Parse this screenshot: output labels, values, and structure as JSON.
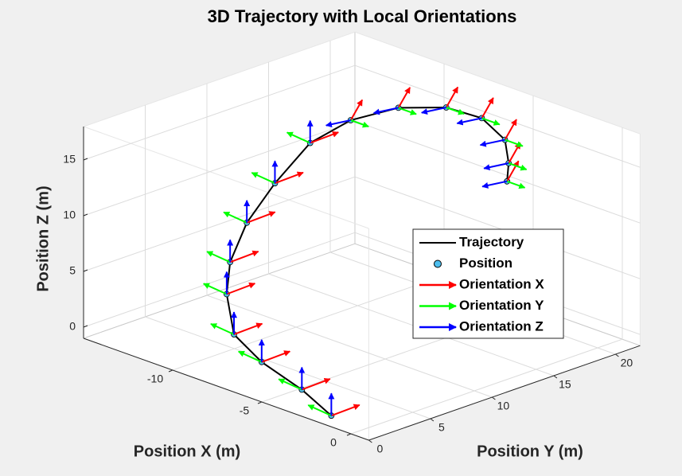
{
  "chart_data": {
    "type": "line3d",
    "title": "3D Trajectory with Local Orientations",
    "xlabel": "Position X (m)",
    "ylabel": "Position Y (m)",
    "zlabel": "Position Z (m)",
    "xlim": [
      -15,
      1
    ],
    "ylim": [
      0,
      22
    ],
    "zlim": [
      -1,
      18
    ],
    "xticks": [
      -10,
      -5,
      0
    ],
    "yticks": [
      0,
      5,
      10,
      15,
      20
    ],
    "zticks": [
      0,
      5,
      10,
      15
    ],
    "grid": true,
    "legend": "east",
    "series": [
      {
        "name": "Trajectory",
        "color": "#000000",
        "x": [
          -1.1,
          -3.1,
          -5.7,
          -7.6,
          -8.7,
          -9.2,
          -9.3,
          -9.8,
          -9.9,
          -9.7,
          -9.1,
          -7.8,
          -6.5,
          -5.2,
          -4.3,
          -3.7
        ],
        "y": [
          0,
          0.5,
          1,
          1.5,
          2.5,
          3.5,
          5,
          8,
          11,
          14,
          17,
          19,
          20,
          20,
          19,
          18
        ],
        "z": [
          0,
          1,
          1.8,
          3,
          5.6,
          7.8,
          10.7,
          12.8,
          15.2,
          16.2,
          16.5,
          16.5,
          15.9,
          14.7,
          13.5,
          12.6
        ]
      },
      {
        "name": "Position",
        "color": "#4dbeee",
        "x": [
          -1.1,
          -3.1,
          -5.7,
          -7.6,
          -8.7,
          -9.2,
          -9.3,
          -9.8,
          -9.9,
          -9.7,
          -9.1,
          -7.8,
          -6.5,
          -5.2,
          -4.3,
          -3.7
        ],
        "y": [
          0,
          0.5,
          1,
          1.5,
          2.5,
          3.5,
          5,
          8,
          11,
          14,
          17,
          19,
          20,
          20,
          19,
          18
        ],
        "z": [
          0,
          1,
          1.8,
          3,
          5.6,
          7.8,
          10.7,
          12.8,
          15.2,
          16.2,
          16.5,
          16.5,
          15.9,
          14.7,
          13.5,
          12.6
        ]
      },
      {
        "name": "Orientation X",
        "color": "#ff0000",
        "u": [
          0.2,
          0.2,
          0.2,
          0.2,
          0.2,
          0.2,
          0.2,
          0.2,
          0.2,
          0.3,
          0.3,
          0.3,
          0.3,
          0.3,
          0.3,
          0.3
        ],
        "v": [
          2,
          2,
          2,
          2,
          2,
          2,
          2,
          2,
          2,
          0.5,
          0.5,
          0.5,
          0.5,
          0.5,
          0.5,
          0.5
        ],
        "w": [
          0.3,
          0.3,
          0.3,
          0.3,
          0.3,
          0.3,
          0.3,
          0.3,
          0.3,
          1.8,
          1.8,
          1.8,
          1.8,
          1.8,
          1.8,
          1.8
        ]
      },
      {
        "name": "Orientation Y",
        "color": "#00ff00",
        "u": [
          -1.3,
          -1.3,
          -1.3,
          -1.3,
          -1.3,
          -1.3,
          -1.3,
          -1.3,
          -1.3,
          1,
          1,
          1,
          1,
          1,
          1,
          1
        ],
        "v": [
          0,
          0,
          0,
          0,
          0,
          0,
          0,
          0,
          0,
          0,
          0,
          0,
          0,
          0,
          0,
          0
        ],
        "w": [
          0.2,
          0.2,
          0.2,
          0.2,
          0.2,
          0.2,
          0.2,
          0.2,
          0.2,
          0,
          0,
          0,
          0,
          0,
          0,
          0
        ]
      },
      {
        "name": "Orientation Z",
        "color": "#0000ff",
        "u": [
          0,
          0,
          0,
          0,
          0,
          0,
          0,
          0,
          0,
          0,
          0,
          0,
          0,
          0,
          0,
          0
        ],
        "v": [
          0,
          0,
          0,
          0,
          0,
          0,
          0,
          0,
          0,
          -2,
          -2,
          -2,
          -2,
          -2,
          -2,
          -2
        ],
        "w": [
          2,
          2,
          2,
          2,
          2,
          2,
          2,
          2,
          2,
          0.3,
          0.3,
          0.3,
          0.3,
          0.3,
          0.3,
          0.3
        ]
      }
    ]
  }
}
